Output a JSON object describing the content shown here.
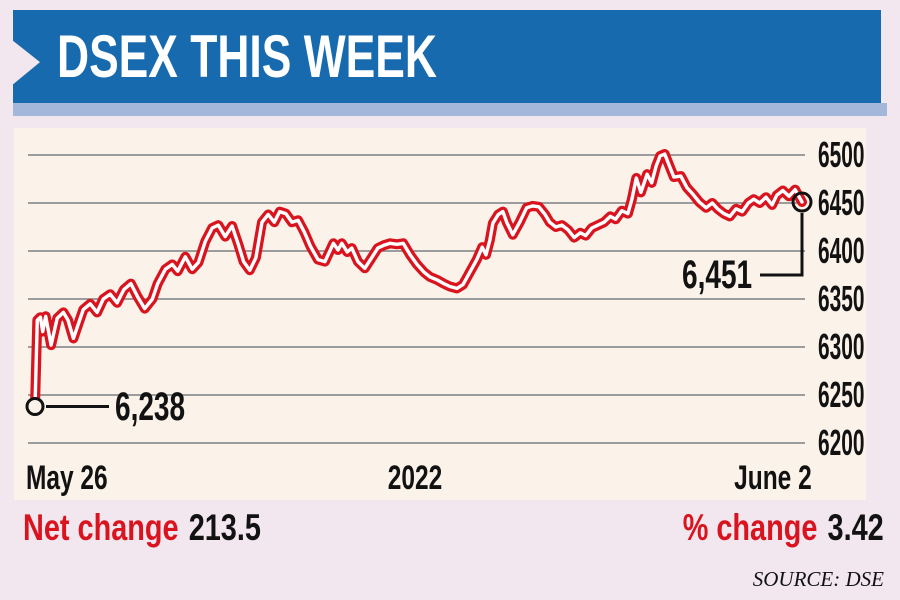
{
  "header": {
    "title": "DSEX THIS WEEK"
  },
  "chart_data": {
    "type": "line",
    "title": "DSEX THIS WEEK",
    "xlabel": "",
    "ylabel": "",
    "x_axis": {
      "labels": [
        "May 26",
        "2022",
        "June 2"
      ]
    },
    "y_axis": {
      "ticks": [
        6500,
        6450,
        6400,
        6350,
        6300,
        6250,
        6200
      ],
      "range": [
        6200,
        6500
      ]
    },
    "grid": true,
    "legend": "none",
    "annotations": {
      "start_label": "6,238",
      "end_label": "6,451",
      "start_value": 6238,
      "end_value": 6451
    },
    "series": [
      {
        "name": "DSEX index",
        "color": "#d9141f",
        "points": [
          [
            0,
            6238
          ],
          [
            0.003,
            6328
          ],
          [
            0.007,
            6331
          ],
          [
            0.01,
            6316
          ],
          [
            0.014,
            6332
          ],
          [
            0.021,
            6302
          ],
          [
            0.029,
            6330
          ],
          [
            0.037,
            6336
          ],
          [
            0.043,
            6328
          ],
          [
            0.05,
            6309
          ],
          [
            0.056,
            6323
          ],
          [
            0.063,
            6339
          ],
          [
            0.072,
            6345
          ],
          [
            0.081,
            6336
          ],
          [
            0.089,
            6350
          ],
          [
            0.098,
            6355
          ],
          [
            0.107,
            6346
          ],
          [
            0.116,
            6360
          ],
          [
            0.125,
            6366
          ],
          [
            0.134,
            6352
          ],
          [
            0.143,
            6340
          ],
          [
            0.153,
            6350
          ],
          [
            0.16,
            6366
          ],
          [
            0.17,
            6381
          ],
          [
            0.179,
            6386
          ],
          [
            0.186,
            6379
          ],
          [
            0.196,
            6394
          ],
          [
            0.205,
            6381
          ],
          [
            0.213,
            6388
          ],
          [
            0.222,
            6410
          ],
          [
            0.231,
            6424
          ],
          [
            0.239,
            6427
          ],
          [
            0.248,
            6415
          ],
          [
            0.257,
            6426
          ],
          [
            0.265,
            6407
          ],
          [
            0.272,
            6389
          ],
          [
            0.28,
            6380
          ],
          [
            0.288,
            6393
          ],
          [
            0.296,
            6430
          ],
          [
            0.304,
            6438
          ],
          [
            0.312,
            6430
          ],
          [
            0.319,
            6441
          ],
          [
            0.327,
            6439
          ],
          [
            0.335,
            6430
          ],
          [
            0.343,
            6432
          ],
          [
            0.351,
            6420
          ],
          [
            0.359,
            6405
          ],
          [
            0.369,
            6391
          ],
          [
            0.378,
            6389
          ],
          [
            0.389,
            6408
          ],
          [
            0.395,
            6401
          ],
          [
            0.4,
            6408
          ],
          [
            0.407,
            6399
          ],
          [
            0.413,
            6403
          ],
          [
            0.421,
            6389
          ],
          [
            0.43,
            6382
          ],
          [
            0.439,
            6393
          ],
          [
            0.447,
            6403
          ],
          [
            0.455,
            6406
          ],
          [
            0.463,
            6408
          ],
          [
            0.472,
            6407
          ],
          [
            0.48,
            6408
          ],
          [
            0.489,
            6396
          ],
          [
            0.498,
            6386
          ],
          [
            0.507,
            6378
          ],
          [
            0.515,
            6373
          ],
          [
            0.524,
            6370
          ],
          [
            0.533,
            6366
          ],
          [
            0.541,
            6363
          ],
          [
            0.55,
            6361
          ],
          [
            0.558,
            6365
          ],
          [
            0.567,
            6378
          ],
          [
            0.576,
            6391
          ],
          [
            0.583,
            6404
          ],
          [
            0.588,
            6396
          ],
          [
            0.593,
            6411
          ],
          [
            0.597,
            6429
          ],
          [
            0.604,
            6438
          ],
          [
            0.61,
            6441
          ],
          [
            0.615,
            6430
          ],
          [
            0.623,
            6417
          ],
          [
            0.632,
            6430
          ],
          [
            0.641,
            6445
          ],
          [
            0.649,
            6447
          ],
          [
            0.657,
            6446
          ],
          [
            0.665,
            6438
          ],
          [
            0.671,
            6430
          ],
          [
            0.679,
            6425
          ],
          [
            0.687,
            6427
          ],
          [
            0.695,
            6422
          ],
          [
            0.703,
            6414
          ],
          [
            0.711,
            6419
          ],
          [
            0.718,
            6416
          ],
          [
            0.726,
            6424
          ],
          [
            0.734,
            6427
          ],
          [
            0.742,
            6430
          ],
          [
            0.75,
            6436
          ],
          [
            0.757,
            6433
          ],
          [
            0.765,
            6442
          ],
          [
            0.773,
            6439
          ],
          [
            0.778,
            6453
          ],
          [
            0.784,
            6476
          ],
          [
            0.79,
            6461
          ],
          [
            0.798,
            6480
          ],
          [
            0.804,
            6471
          ],
          [
            0.81,
            6489
          ],
          [
            0.815,
            6499
          ],
          [
            0.821,
            6501
          ],
          [
            0.826,
            6491
          ],
          [
            0.833,
            6477
          ],
          [
            0.842,
            6478
          ],
          [
            0.85,
            6466
          ],
          [
            0.858,
            6459
          ],
          [
            0.866,
            6451
          ],
          [
            0.875,
            6445
          ],
          [
            0.883,
            6450
          ],
          [
            0.89,
            6444
          ],
          [
            0.898,
            6439
          ],
          [
            0.906,
            6436
          ],
          [
            0.914,
            6444
          ],
          [
            0.922,
            6441
          ],
          [
            0.93,
            6450
          ],
          [
            0.937,
            6454
          ],
          [
            0.945,
            6450
          ],
          [
            0.953,
            6456
          ],
          [
            0.961,
            6448
          ],
          [
            0.967,
            6458
          ],
          [
            0.975,
            6463
          ],
          [
            0.983,
            6457
          ],
          [
            0.991,
            6464
          ],
          [
            1,
            6451
          ]
        ]
      }
    ]
  },
  "stats": {
    "net_change_label": "Net change",
    "net_change_value": "213.5",
    "pct_change_label": "% change",
    "pct_change_value": "3.42"
  },
  "source": "SOURCE: DSE",
  "colors": {
    "banner_blue": "#176aae",
    "banner_strip": "#a2b7da",
    "page_background": "#f2e6ef",
    "panel_background": "#fbf2e9",
    "line_red": "#d9141f",
    "accent_red": "#d9141f"
  }
}
